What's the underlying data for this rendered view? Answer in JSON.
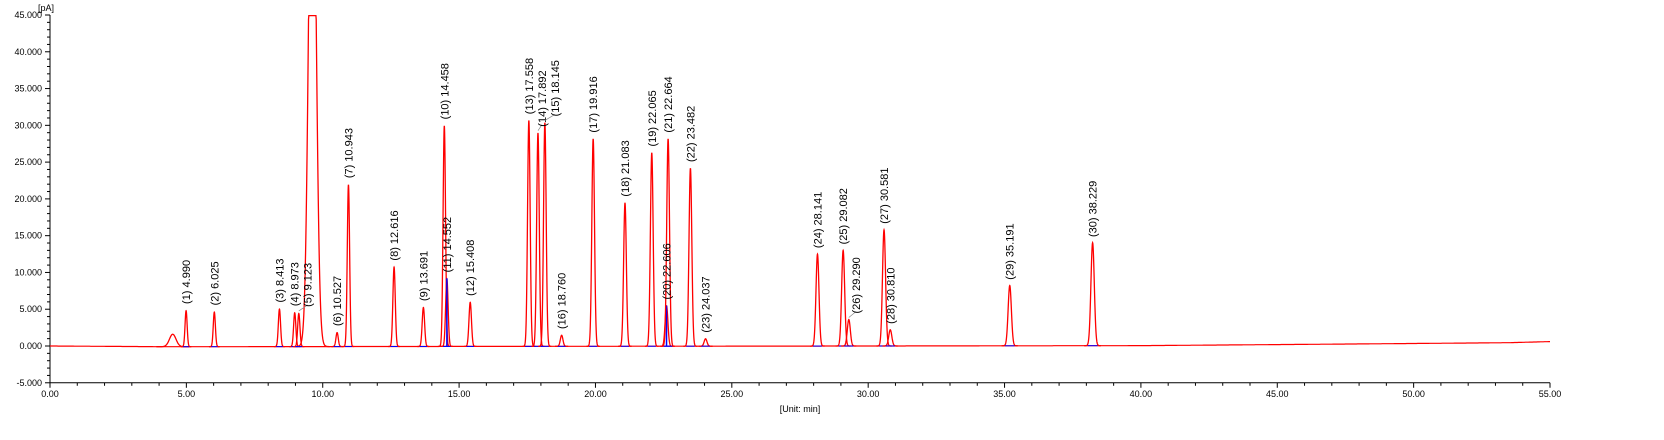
{
  "chart_data": {
    "type": "line",
    "title": "",
    "ylabel": "[pA]",
    "xlabel": "[Unit: min]",
    "xlim": [
      0,
      55
    ],
    "ylim": [
      -5,
      45
    ],
    "grid": false,
    "x_ticks": [
      "0.00",
      "5.00",
      "10.00",
      "15.00",
      "20.00",
      "25.00",
      "30.00",
      "35.00",
      "40.00",
      "45.00",
      "50.00",
      "55.00"
    ],
    "y_ticks": [
      "45.000",
      "40.000",
      "35.000",
      "30.000",
      "25.000",
      "20.000",
      "15.000",
      "10.000",
      "5.000",
      "0.000",
      "-5.000"
    ],
    "colors": {
      "signal": "#ff0000",
      "integration_baseline": "#0000ff",
      "axis": "#000000"
    },
    "baseline": {
      "x": [
        0,
        4.3,
        30,
        40,
        47,
        53.5,
        55
      ],
      "y": [
        0,
        -0.1,
        0,
        0.05,
        0.25,
        0.45,
        0.6
      ]
    },
    "unlabeled_peaks": [
      {
        "rt": 4.5,
        "height": 1.7,
        "width": 0.12
      },
      {
        "rt": 9.62,
        "height": 45,
        "width": 0.13,
        "clipped": true
      }
    ],
    "peaks": [
      {
        "label": "(1) 4.990",
        "rt": 4.99,
        "height": 4.9
      },
      {
        "label": "(2) 6.025",
        "rt": 6.025,
        "height": 4.7
      },
      {
        "label": "(3) 8.413",
        "rt": 8.413,
        "height": 5.1
      },
      {
        "label": "(4) 8.973",
        "rt": 8.973,
        "height": 4.6
      },
      {
        "label": "(5) 9.123",
        "rt": 9.123,
        "height": 4.5
      },
      {
        "label": "(6) 10.527",
        "rt": 10.527,
        "height": 1.9
      },
      {
        "label": "(7) 10.943",
        "rt": 10.943,
        "height": 22.0
      },
      {
        "label": "(8) 12.616",
        "rt": 12.616,
        "height": 10.8
      },
      {
        "label": "(9) 13.691",
        "rt": 13.691,
        "height": 5.3
      },
      {
        "label": "(10) 14.458",
        "rt": 14.458,
        "height": 30.0
      },
      {
        "label": "(11) 14.552",
        "rt": 14.552,
        "height": 9.2
      },
      {
        "label": "(12) 15.408",
        "rt": 15.408,
        "height": 6.0
      },
      {
        "label": "(13) 17.558",
        "rt": 17.558,
        "height": 30.7
      },
      {
        "label": "(14) 17.892",
        "rt": 17.892,
        "height": 29.0
      },
      {
        "label": "(15) 18.145",
        "rt": 18.145,
        "height": 30.4
      },
      {
        "label": "(16) 18.760",
        "rt": 18.76,
        "height": 1.5
      },
      {
        "label": "(17) 19.916",
        "rt": 19.916,
        "height": 28.2
      },
      {
        "label": "(18) 21.083",
        "rt": 21.083,
        "height": 19.5
      },
      {
        "label": "(19) 22.065",
        "rt": 22.065,
        "height": 26.3
      },
      {
        "label": "(20) 22.606",
        "rt": 22.606,
        "height": 5.5
      },
      {
        "label": "(21) 22.664",
        "rt": 22.664,
        "height": 28.2
      },
      {
        "label": "(22) 23.482",
        "rt": 23.482,
        "height": 24.2
      },
      {
        "label": "(23) 24.037",
        "rt": 24.037,
        "height": 1.0
      },
      {
        "label": "(24) 28.141",
        "rt": 28.141,
        "height": 12.5
      },
      {
        "label": "(25) 29.082",
        "rt": 29.082,
        "height": 13.0
      },
      {
        "label": "(26) 29.290",
        "rt": 29.29,
        "height": 3.6
      },
      {
        "label": "(27) 30.581",
        "rt": 30.581,
        "height": 15.8
      },
      {
        "label": "(28) 30.810",
        "rt": 30.81,
        "height": 2.2
      },
      {
        "label": "(29) 35.191",
        "rt": 35.191,
        "height": 8.2
      },
      {
        "label": "(30) 38.229",
        "rt": 38.229,
        "height": 14.0
      }
    ]
  }
}
